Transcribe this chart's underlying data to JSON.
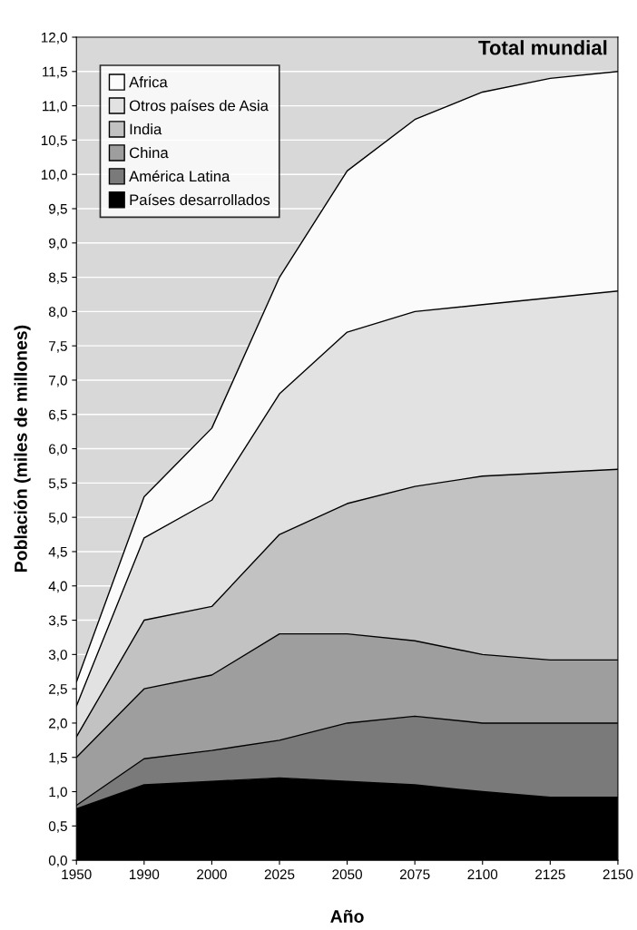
{
  "chart_data": {
    "type": "area",
    "stacked": true,
    "xlabel": "Año",
    "ylabel": "Población (miles de millones)",
    "categories": [
      "1950",
      "1990",
      "2000",
      "2025",
      "2050",
      "2075",
      "2100",
      "2125",
      "2150"
    ],
    "series": [
      {
        "name": "Países desarrollados",
        "color": "#000000",
        "values": [
          0.75,
          1.1,
          1.15,
          1.2,
          1.15,
          1.1,
          1.0,
          0.92,
          0.92
        ]
      },
      {
        "name": "América Latina",
        "color": "#7a7a7a",
        "values": [
          0.05,
          0.38,
          0.45,
          0.55,
          0.85,
          1.0,
          1.0,
          1.08,
          1.08
        ]
      },
      {
        "name": "China",
        "color": "#9e9e9e",
        "values": [
          0.7,
          1.02,
          1.1,
          1.55,
          1.3,
          1.1,
          1.0,
          0.92,
          0.92
        ]
      },
      {
        "name": "India",
        "color": "#c2c2c2",
        "values": [
          0.3,
          1.0,
          1.0,
          1.45,
          1.9,
          2.25,
          2.6,
          2.73,
          2.78
        ]
      },
      {
        "name": "Otros países de Asia",
        "color": "#e2e2e2",
        "values": [
          0.45,
          1.2,
          1.55,
          2.05,
          2.5,
          2.55,
          2.5,
          2.55,
          2.6
        ]
      },
      {
        "name": "Africa",
        "color": "#fbfbfb",
        "values": [
          0.35,
          0.6,
          1.05,
          1.7,
          2.35,
          2.8,
          3.1,
          3.2,
          3.2
        ]
      }
    ],
    "ylim": [
      0,
      12
    ],
    "yticks": [
      {
        "value": 0,
        "label": "0,0"
      },
      {
        "value": 0.5,
        "label": "0,5"
      },
      {
        "value": 1,
        "label": "1,0"
      },
      {
        "value": 1.5,
        "label": "1,5"
      },
      {
        "value": 2,
        "label": "2,0"
      },
      {
        "value": 2.5,
        "label": "2,5"
      },
      {
        "value": 3,
        "label": "3,0"
      },
      {
        "value": 3.5,
        "label": "3,5"
      },
      {
        "value": 4,
        "label": "4,0"
      },
      {
        "value": 4.5,
        "label": "4,5"
      },
      {
        "value": 5,
        "label": "5,0"
      },
      {
        "value": 5.5,
        "label": "5,5"
      },
      {
        "value": 6,
        "label": "6,0"
      },
      {
        "value": 6.5,
        "label": "6,5"
      },
      {
        "value": 7,
        "label": "7,0"
      },
      {
        "value": 7.5,
        "label": "7,5"
      },
      {
        "value": 8,
        "label": "8,0"
      },
      {
        "value": 8.5,
        "label": "8,5"
      },
      {
        "value": 9,
        "label": "9,0"
      },
      {
        "value": 9.5,
        "label": "9,5"
      },
      {
        "value": 10,
        "label": "10,0"
      },
      {
        "value": 10.5,
        "label": "10,5"
      },
      {
        "value": 11,
        "label": "11,0"
      },
      {
        "value": 11.5,
        "label": "11,5"
      },
      {
        "value": 12,
        "label": "12,0"
      }
    ],
    "grid": "y",
    "legend": "top left",
    "annotations": [
      {
        "text": "Total mundial",
        "x": "2150",
        "y": 11.5
      }
    ]
  }
}
